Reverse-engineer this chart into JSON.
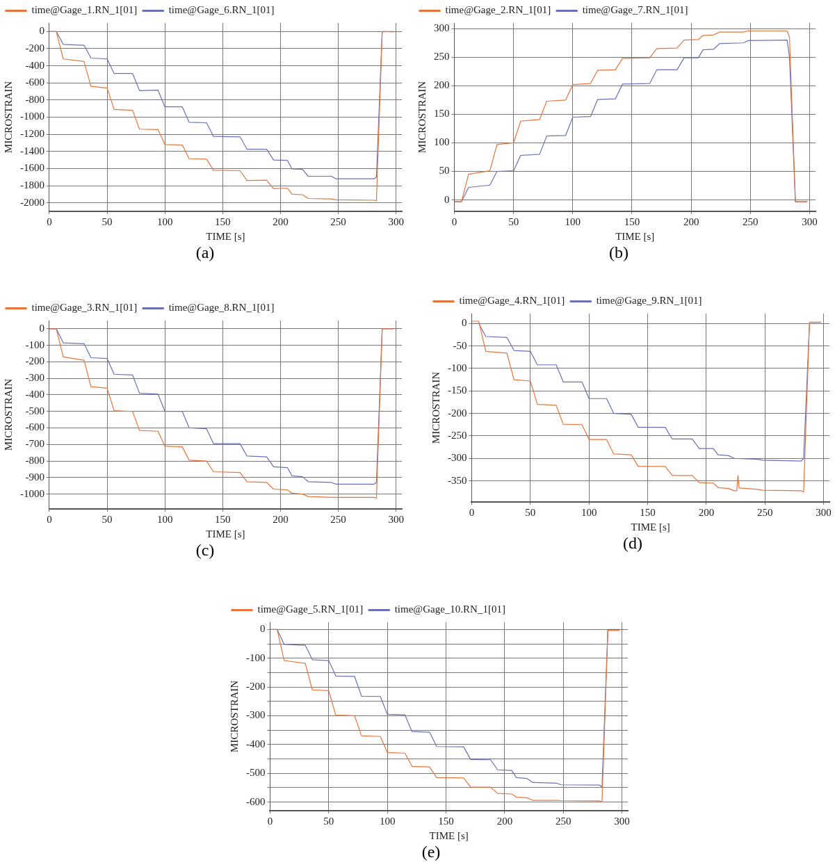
{
  "chart_data": [
    {
      "type": "line",
      "xlabel": "TIME [s]",
      "ylabel": "MICROSTRAIN",
      "legend": "top",
      "grid": true,
      "marker": "none",
      "annotations": [
        "(a)"
      ],
      "xlim": [
        0,
        305
      ],
      "xticks": [
        0,
        50,
        100,
        150,
        200,
        250,
        300
      ],
      "ylim": [
        -2100,
        100
      ],
      "yticks": [
        0,
        -200,
        -400,
        -600,
        -800,
        -1000,
        -1200,
        -1400,
        -1600,
        -1800,
        -2000
      ],
      "x": [
        0,
        6,
        12,
        30,
        36,
        50,
        56,
        72,
        78,
        94,
        100,
        115,
        121,
        136,
        142,
        165,
        171,
        188,
        194,
        206,
        210,
        219,
        224,
        244,
        248,
        281,
        283,
        288,
        298
      ],
      "series": [
        {
          "name": "time@Gage_1.RN_1[01]",
          "color": "#e8743b",
          "values": [
            0,
            0,
            -320,
            -350,
            -640,
            -660,
            -910,
            -920,
            -1140,
            -1145,
            -1320,
            -1325,
            -1485,
            -1490,
            -1620,
            -1625,
            -1740,
            -1735,
            -1835,
            -1830,
            -1900,
            -1905,
            -1950,
            -1955,
            -1965,
            -1970,
            -1975,
            0,
            -5
          ]
        },
        {
          "name": "time@Gage_6.RN_1[01]",
          "color": "#6a6fb8",
          "values": [
            0,
            0,
            -150,
            -160,
            -310,
            -320,
            -490,
            -490,
            -690,
            -685,
            -880,
            -880,
            -1060,
            -1065,
            -1225,
            -1230,
            -1375,
            -1375,
            -1500,
            -1505,
            -1605,
            -1610,
            -1690,
            -1690,
            -1720,
            -1720,
            -1700,
            0,
            0
          ]
        }
      ]
    },
    {
      "type": "line",
      "xlabel": "TIME [s]",
      "ylabel": "MICROSTRAIN",
      "legend": "top",
      "grid": true,
      "marker": "none",
      "annotations": [
        "(b)"
      ],
      "xlim": [
        0,
        305
      ],
      "xticks": [
        0,
        50,
        100,
        150,
        200,
        250,
        300
      ],
      "ylim": [
        -20,
        310
      ],
      "yticks": [
        0,
        50,
        100,
        150,
        200,
        250,
        300
      ],
      "x": [
        0,
        6,
        12,
        30,
        36,
        50,
        56,
        72,
        78,
        94,
        100,
        115,
        121,
        136,
        142,
        165,
        171,
        188,
        194,
        206,
        210,
        219,
        224,
        244,
        248,
        281,
        283,
        288,
        298
      ],
      "series": [
        {
          "name": "time@Gage_2.RN_1[01]",
          "color": "#e8743b",
          "values": [
            -3,
            -3,
            45,
            51,
            97,
            100,
            138,
            141,
            173,
            175,
            202,
            204,
            227,
            228,
            248,
            249,
            265,
            266,
            280,
            281,
            288,
            289,
            294,
            294,
            296,
            296,
            285,
            -3,
            -3
          ]
        },
        {
          "name": "time@Gage_7.RN_1[01]",
          "color": "#6a6fb8",
          "values": [
            -3,
            -3,
            22,
            26,
            50,
            51,
            78,
            80,
            112,
            113,
            145,
            146,
            176,
            177,
            203,
            204,
            228,
            228,
            249,
            249,
            263,
            264,
            274,
            275,
            279,
            280,
            250,
            -3,
            -3
          ]
        }
      ]
    },
    {
      "type": "line",
      "xlabel": "TIME [s]",
      "ylabel": "MICROSTRAIN",
      "legend": "top",
      "grid": true,
      "marker": "none",
      "annotations": [
        "(c)"
      ],
      "xlim": [
        0,
        305
      ],
      "xticks": [
        0,
        50,
        100,
        150,
        200,
        250,
        300
      ],
      "ylim": [
        -1090,
        50
      ],
      "yticks": [
        0,
        -100,
        -200,
        -300,
        -400,
        -500,
        -600,
        -700,
        -800,
        -900,
        -1000
      ],
      "x": [
        0,
        6,
        12,
        30,
        36,
        50,
        56,
        72,
        78,
        94,
        100,
        115,
        121,
        136,
        142,
        165,
        171,
        188,
        194,
        206,
        210,
        219,
        224,
        244,
        248,
        281,
        283,
        288,
        298
      ],
      "series": [
        {
          "name": "time@Gage_3.RN_1[01]",
          "color": "#e8743b",
          "values": [
            0,
            0,
            -170,
            -190,
            -350,
            -360,
            -495,
            -500,
            -615,
            -620,
            -710,
            -715,
            -795,
            -800,
            -865,
            -870,
            -925,
            -930,
            -970,
            -975,
            -995,
            -1000,
            -1015,
            -1020,
            -1020,
            -1020,
            -1025,
            0,
            0
          ]
        },
        {
          "name": "time@Gage_8.RN_1[01]",
          "color": "#6a6fb8",
          "values": [
            0,
            0,
            -85,
            -90,
            -175,
            -180,
            -275,
            -280,
            -390,
            -395,
            -500,
            -500,
            -600,
            -605,
            -695,
            -695,
            -770,
            -775,
            -835,
            -840,
            -890,
            -895,
            -925,
            -930,
            -940,
            -940,
            -930,
            0,
            0
          ]
        }
      ]
    },
    {
      "type": "line",
      "xlabel": "TIME [s]",
      "ylabel": "MICROSTRAIN",
      "legend": "top",
      "grid": true,
      "marker": "none",
      "annotations": [
        "(d)"
      ],
      "xlim": [
        0,
        305
      ],
      "xticks": [
        0,
        50,
        100,
        150,
        200,
        250,
        300
      ],
      "ylim": [
        -397,
        22
      ],
      "yticks": [
        0,
        -50,
        -100,
        -150,
        -200,
        -250,
        -300,
        -350
      ],
      "x": [
        0,
        6,
        12,
        30,
        36,
        50,
        56,
        72,
        78,
        94,
        100,
        115,
        121,
        136,
        142,
        165,
        171,
        188,
        194,
        206,
        210,
        219,
        224,
        244,
        248,
        281,
        283,
        288,
        298
      ],
      "series": [
        {
          "name": "time@Gage_4.RN_1[01]",
          "color": "#e8743b",
          "x": [
            0,
            6,
            12,
            30,
            36,
            50,
            56,
            72,
            78,
            94,
            100,
            115,
            121,
            136,
            142,
            165,
            171,
            188,
            194,
            206,
            210,
            219,
            224,
            226,
            227,
            228,
            244,
            248,
            281,
            283,
            288,
            298
          ],
          "values": [
            5,
            5,
            -62,
            -66,
            -125,
            -128,
            -180,
            -182,
            -224,
            -225,
            -258,
            -258,
            -290,
            -292,
            -318,
            -318,
            -338,
            -338,
            -354,
            -355,
            -365,
            -367,
            -372,
            -372,
            -338,
            -366,
            -369,
            -371,
            -372,
            -375,
            3,
            3
          ]
        },
        {
          "name": "time@Gage_9.RN_1[01]",
          "color": "#6a6fb8",
          "values": [
            0,
            0,
            -29,
            -31,
            -60,
            -62,
            -92,
            -92,
            -130,
            -130,
            -167,
            -167,
            -200,
            -202,
            -231,
            -231,
            -257,
            -257,
            -278,
            -278,
            -292,
            -294,
            -300,
            -302,
            -304,
            -306,
            -300,
            0,
            0
          ]
        }
      ]
    },
    {
      "type": "line",
      "xlabel": "TIME [s]",
      "ylabel": "MICROSTRAIN",
      "legend": "top",
      "grid": true,
      "marker": "none",
      "annotations": [
        "(e)"
      ],
      "xlim": [
        0,
        305
      ],
      "xticks": [
        0,
        50,
        100,
        150,
        200,
        250,
        300
      ],
      "ylim": [
        -630,
        25
      ],
      "yticks": [
        0,
        {
          "value": -50,
          "label": null
        },
        -100,
        {
          "value": -150,
          "label": null
        },
        -200,
        {
          "value": -250,
          "label": null
        },
        -300,
        {
          "value": -350,
          "label": null
        },
        -400,
        {
          "value": -450,
          "label": null
        },
        -500,
        {
          "value": -550,
          "label": null
        },
        -600
      ],
      "x": [
        0,
        6,
        12,
        30,
        36,
        50,
        56,
        72,
        78,
        94,
        100,
        115,
        121,
        136,
        142,
        165,
        171,
        188,
        194,
        206,
        210,
        219,
        224,
        244,
        248,
        281,
        283,
        288,
        298
      ],
      "series": [
        {
          "name": "time@Gage_5.RN_1[01]",
          "color": "#e8743b",
          "values": [
            0,
            0,
            -108,
            -118,
            -210,
            -213,
            -298,
            -300,
            -370,
            -372,
            -428,
            -430,
            -476,
            -478,
            -515,
            -516,
            -548,
            -548,
            -570,
            -572,
            -583,
            -585,
            -594,
            -594,
            -595,
            -596,
            -600,
            -3,
            -3
          ]
        },
        {
          "name": "time@Gage_10.RN_1[01]",
          "color": "#6a6fb8",
          "values": [
            0,
            0,
            -52,
            -55,
            -105,
            -108,
            -162,
            -163,
            -232,
            -233,
            -295,
            -297,
            -355,
            -357,
            -407,
            -408,
            -452,
            -453,
            -488,
            -490,
            -515,
            -518,
            -532,
            -534,
            -540,
            -541,
            -548,
            0,
            0
          ]
        }
      ]
    }
  ]
}
